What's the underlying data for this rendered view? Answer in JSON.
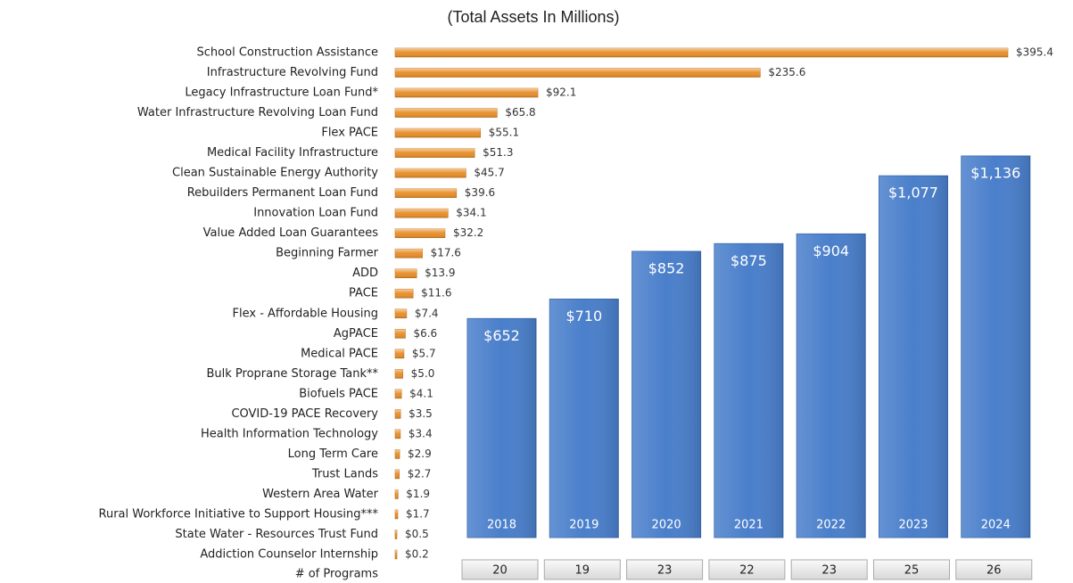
{
  "chart_data": [
    {
      "type": "hbar",
      "categories": [
        "School Construction Assistance",
        "Infrastructure Revolving Fund",
        "Legacy Infrastructure Loan Fund*",
        "Water Infrastructure Revolving Loan Fund",
        "Flex PACE",
        "Medical Facility Infrastructure",
        "Clean Sustainable Energy Authority",
        "Rebuilders Permanent Loan Fund",
        "Innovation Loan Fund",
        "Value Added Loan Guarantees",
        "Beginning Farmer",
        "ADD",
        "PACE",
        "Flex - Affordable Housing",
        "AgPACE",
        "Medical PACE",
        "Bulk Proprane Storage Tank**",
        "Biofuels PACE",
        "COVID-19 PACE Recovery",
        "Health Information Technology",
        "Long Term Care",
        "Trust Lands",
        "Western Area Water",
        "Rural Workforce Initiative to Support Housing***",
        "State Water - Resources Trust Fund",
        "Addiction Counselor Internship"
      ],
      "values": [
        395.4,
        235.6,
        92.1,
        65.8,
        55.1,
        51.3,
        45.7,
        39.6,
        34.1,
        32.2,
        17.6,
        13.9,
        11.6,
        7.4,
        6.6,
        5.7,
        5.0,
        4.1,
        3.5,
        3.4,
        2.9,
        2.7,
        1.9,
        1.7,
        0.5,
        0.2
      ],
      "value_labels": [
        "$395.4",
        "$235.6",
        "$92.1",
        "$65.8",
        "$55.1",
        "$51.3",
        "$45.7",
        "$39.6",
        "$34.1",
        "$32.2",
        "$17.6",
        "$13.9",
        "$11.6",
        "$7.4",
        "$6.6",
        "$5.7",
        "$5.0",
        "$4.1",
        "$3.5",
        "$3.4",
        "$2.9",
        "$2.7",
        "$1.9",
        "$1.7",
        "$0.5",
        "$0.2"
      ],
      "color": "#e8902c"
    },
    {
      "type": "bar",
      "title": "(Total Assets In Millions)",
      "categories": [
        "2018",
        "2019",
        "2020",
        "2021",
        "2022",
        "2023",
        "2024"
      ],
      "values": [
        652,
        710,
        852,
        875,
        904,
        1077,
        1136
      ],
      "value_labels": [
        "$652",
        "$710",
        "$852",
        "$875",
        "$904",
        "$1,077",
        "$1,136"
      ],
      "color": "#4a7fcb",
      "program_counts_label": "# of Programs",
      "program_counts": [
        20,
        19,
        23,
        22,
        23,
        25,
        26
      ]
    }
  ]
}
